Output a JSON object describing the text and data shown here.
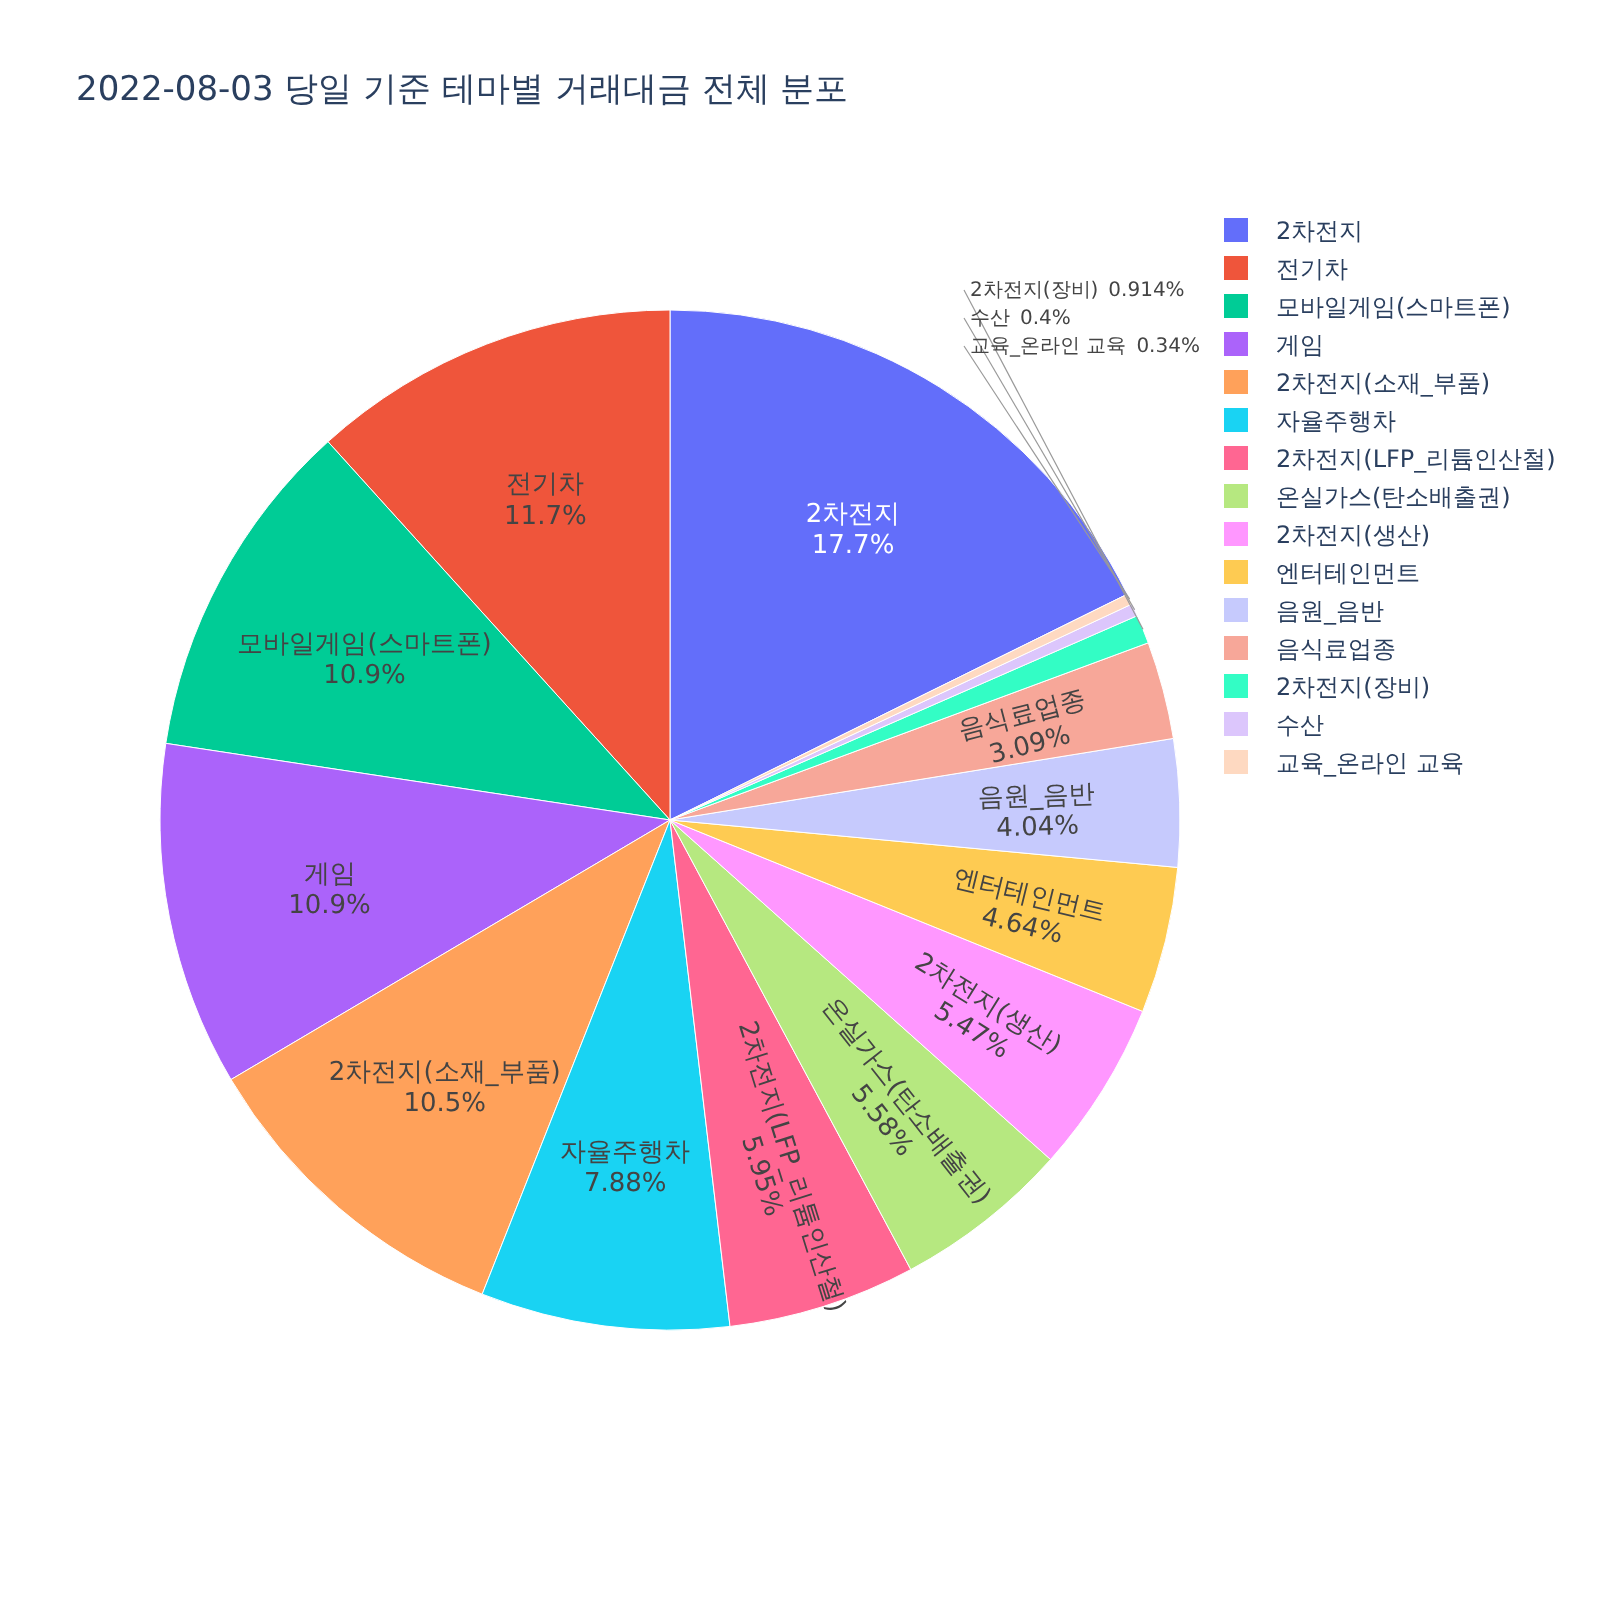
{
  "chart_data": {
    "type": "pie",
    "title": "2022-08-03 당일 기준 테마별 거래대금 전체 분포",
    "categories": [
      "2차전지",
      "전기차",
      "모바일게임(스마트폰)",
      "게임",
      "2차전지(소재_부품)",
      "자율주행차",
      "2차전지(LFP_리튬인산철)",
      "온실가스(탄소배출권)",
      "2차전지(생산)",
      "엔터테인먼트",
      "음원_음반",
      "음식료업종",
      "2차전지(장비)",
      "수산",
      "교육_온라인 교육"
    ],
    "values": [
      17.7,
      11.7,
      10.9,
      10.9,
      10.5,
      7.88,
      5.95,
      5.58,
      5.47,
      4.64,
      4.04,
      3.09,
      0.914,
      0.4,
      0.34
    ],
    "value_labels": [
      "17.7%",
      "11.7%",
      "10.9%",
      "10.9%",
      "10.5%",
      "7.88%",
      "5.95%",
      "5.58%",
      "5.47%",
      "4.64%",
      "4.04%",
      "3.09%",
      "0.914%",
      "0.4%",
      "0.34%"
    ],
    "colors": [
      "#636efa",
      "#ef553b",
      "#00cc96",
      "#ab63fa",
      "#ffa15a",
      "#19d3f3",
      "#ff6692",
      "#b6e880",
      "#ff97ff",
      "#fecb52",
      "#c6cafd",
      "#f7a799",
      "#33fdc5",
      "#dcc6fc",
      "#fed9c1"
    ],
    "legend": "top right"
  }
}
